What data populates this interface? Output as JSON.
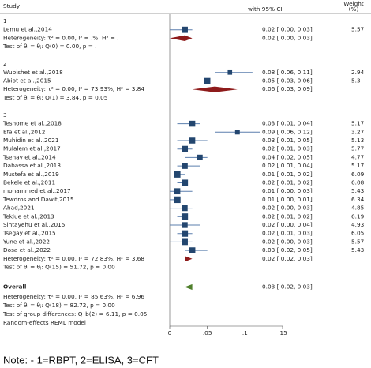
{
  "chart_data": {
    "type": "forest",
    "header": {
      "study": "Study",
      "ci": "with 95% CI",
      "weight": "Weight",
      "weight_unit": "(%)"
    },
    "colors": {
      "marker": "#23466f",
      "ci": "#5b7fae",
      "group_diamond": "#8e1b1b",
      "overall_diamond": "#4f7f2c"
    },
    "groups": [
      {
        "label": "1",
        "studies": [
          {
            "name": "Lemu et al.,2014",
            "es": 0.02,
            "lo": 0.0,
            "hi": 0.03,
            "ci_label": "0.02 [ 0.00, 0.03]",
            "weight": 5.57
          }
        ],
        "heterogeneity": "Heterogeneity: τ² = 0.00, I² = .%, H² = .",
        "pooled": {
          "es": 0.02,
          "lo": 0.0,
          "hi": 0.03,
          "ci_label": "0.02 [ 0.00, 0.03]"
        },
        "test": "Test of θᵢ = θⱼ: Q(0) = 0.00, p = ."
      },
      {
        "label": "2",
        "studies": [
          {
            "name": "Wubishet et al.,2018",
            "es": 0.08,
            "lo": 0.06,
            "hi": 0.11,
            "ci_label": "0.08 [ 0.06, 0.11]",
            "weight": 2.94
          },
          {
            "name": "Abiot et al.,2015",
            "es": 0.05,
            "lo": 0.03,
            "hi": 0.06,
            "ci_label": "0.05 [ 0.03, 0.06]",
            "weight": 5.3
          }
        ],
        "heterogeneity": "Heterogeneity: τ² = 0.00, I² = 73.93%, H² = 3.84",
        "pooled": {
          "es": 0.06,
          "lo": 0.03,
          "hi": 0.09,
          "ci_label": "0.06 [ 0.03, 0.09]"
        },
        "test": "Test of θᵢ = θⱼ: Q(1) = 3.84, p = 0.05"
      },
      {
        "label": "3",
        "studies": [
          {
            "name": "Teshome et al.,2018",
            "es": 0.03,
            "lo": 0.01,
            "hi": 0.04,
            "ci_label": "0.03 [ 0.01, 0.04]",
            "weight": 5.17
          },
          {
            "name": "Efa et al.,2012",
            "es": 0.09,
            "lo": 0.06,
            "hi": 0.12,
            "ci_label": "0.09 [ 0.06, 0.12]",
            "weight": 3.27
          },
          {
            "name": "Muhidin et al.,2021",
            "es": 0.03,
            "lo": 0.01,
            "hi": 0.05,
            "ci_label": "0.03 [ 0.01, 0.05]",
            "weight": 5.13
          },
          {
            "name": "Mulalem et al.,2017",
            "es": 0.02,
            "lo": 0.01,
            "hi": 0.03,
            "ci_label": "0.02 [ 0.01, 0.03]",
            "weight": 5.77
          },
          {
            "name": "Tsehay et al.,2014",
            "es": 0.04,
            "lo": 0.02,
            "hi": 0.05,
            "ci_label": "0.04 [ 0.02, 0.05]",
            "weight": 4.77
          },
          {
            "name": "Dabassa et al.,2013",
            "es": 0.02,
            "lo": 0.01,
            "hi": 0.04,
            "ci_label": "0.02 [ 0.01, 0.04]",
            "weight": 5.17
          },
          {
            "name": "Mustefa et al.,2019",
            "es": 0.01,
            "lo": 0.01,
            "hi": 0.02,
            "ci_label": "0.01 [ 0.01, 0.02]",
            "weight": 6.09
          },
          {
            "name": "Bekele et al.,2011",
            "es": 0.02,
            "lo": 0.01,
            "hi": 0.02,
            "ci_label": "0.02 [ 0.01, 0.02]",
            "weight": 6.08
          },
          {
            "name": "mohammed et al.,2017",
            "es": 0.01,
            "lo": 0.0,
            "hi": 0.03,
            "ci_label": "0.01 [ 0.00, 0.03]",
            "weight": 5.43
          },
          {
            "name": "Tewdros and Dawit,2015",
            "es": 0.01,
            "lo": 0.0,
            "hi": 0.01,
            "ci_label": "0.01 [ 0.00, 0.01]",
            "weight": 6.34
          },
          {
            "name": "Ahad,2021",
            "es": 0.02,
            "lo": 0.0,
            "hi": 0.03,
            "ci_label": "0.02 [ 0.00, 0.03]",
            "weight": 4.85
          },
          {
            "name": "Teklue et al.,2013",
            "es": 0.02,
            "lo": 0.01,
            "hi": 0.02,
            "ci_label": "0.02 [ 0.01, 0.02]",
            "weight": 6.19
          },
          {
            "name": "Sintayehu et al.,2015",
            "es": 0.02,
            "lo": 0.0,
            "hi": 0.04,
            "ci_label": "0.02 [ 0.00, 0.04]",
            "weight": 4.93
          },
          {
            "name": "Tsegay et al.,2015",
            "es": 0.02,
            "lo": 0.01,
            "hi": 0.03,
            "ci_label": "0.02 [ 0.01, 0.03]",
            "weight": 6.05
          },
          {
            "name": "Yune et al.,2022",
            "es": 0.02,
            "lo": 0.0,
            "hi": 0.03,
            "ci_label": "0.02 [ 0.00, 0.03]",
            "weight": 5.57
          },
          {
            "name": "Dosa et al.,2022",
            "es": 0.03,
            "lo": 0.02,
            "hi": 0.05,
            "ci_label": "0.03 [ 0.02, 0.05]",
            "weight": 5.43
          }
        ],
        "heterogeneity": "Heterogeneity: τ² = 0.00, I² = 72.83%, H² = 3.68",
        "pooled": {
          "es": 0.02,
          "lo": 0.02,
          "hi": 0.03,
          "ci_label": "0.02 [ 0.02, 0.03]"
        },
        "test": "Test of θᵢ = θⱼ: Q(15) = 51.72, p = 0.00"
      }
    ],
    "overall": {
      "label": "Overall",
      "pooled": {
        "es": 0.03,
        "lo": 0.02,
        "hi": 0.03,
        "ci_label": "0.03 [ 0.02, 0.03]"
      },
      "heterogeneity": "Heterogeneity: τ² = 0.00, I² = 85.63%, H² = 6.96",
      "test": "Test of θᵢ = θⱼ: Q(18) = 82.72, p = 0.00",
      "group_test": "Test of group differences: Q_b(2) = 6.11, p = 0.05"
    },
    "model": "Random-effects REML model",
    "xlim": [
      0,
      0.15
    ],
    "xticks": [
      0,
      {
        "value": 0.05,
        "label": ".05"
      },
      {
        "value": 0.1,
        "label": ".1"
      },
      {
        "value": 0.15,
        "label": ".15"
      }
    ],
    "note": "Note: - 1=RBPT, 2=ELISA, 3=CFT"
  }
}
